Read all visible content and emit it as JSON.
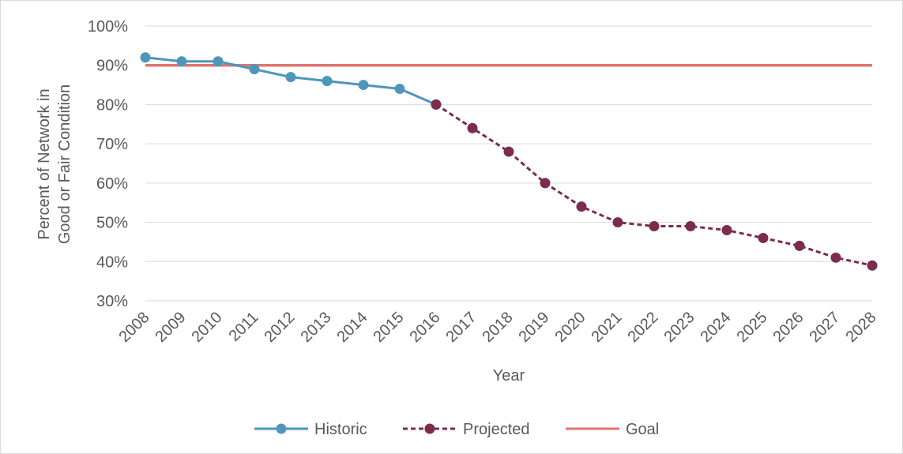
{
  "chart_data": {
    "type": "line",
    "title": "",
    "xlabel": "Year",
    "ylabel_line1": "Percent of Network in",
    "ylabel_line2": "Good or Fair Condition",
    "ylim": [
      30,
      100
    ],
    "yticks": [
      30,
      40,
      50,
      60,
      70,
      80,
      90,
      100
    ],
    "ytick_labels": [
      "30%",
      "40%",
      "50%",
      "60%",
      "70%",
      "80%",
      "90%",
      "100%"
    ],
    "categories": [
      "2008",
      "2009",
      "2010",
      "2011",
      "2012",
      "2013",
      "2014",
      "2015",
      "2016",
      "2017",
      "2018",
      "2019",
      "2020",
      "2021",
      "2022",
      "2023",
      "2024",
      "2025",
      "2026",
      "2027",
      "2028"
    ],
    "grid": "horizontal",
    "legend_position": "bottom",
    "series": [
      {
        "name": "Historic",
        "color": "#4e96bc",
        "style": "solid",
        "marker": "circle",
        "x": [
          "2008",
          "2009",
          "2010",
          "2011",
          "2012",
          "2013",
          "2014",
          "2015",
          "2016"
        ],
        "values": [
          92,
          91,
          91,
          89,
          87,
          86,
          85,
          84,
          80
        ]
      },
      {
        "name": "Projected",
        "color": "#7b2c4f",
        "style": "dashed",
        "marker": "circle",
        "x": [
          "2016",
          "2017",
          "2018",
          "2019",
          "2020",
          "2021",
          "2022",
          "2023",
          "2024",
          "2025",
          "2026",
          "2027",
          "2028"
        ],
        "values": [
          80,
          74,
          68,
          60,
          54,
          50,
          49,
          49,
          48,
          46,
          44,
          41,
          39
        ]
      },
      {
        "name": "Goal",
        "color": "#e07670",
        "style": "solid",
        "marker": "none",
        "x": [
          "2008",
          "2028"
        ],
        "values": [
          90,
          90
        ]
      }
    ]
  }
}
